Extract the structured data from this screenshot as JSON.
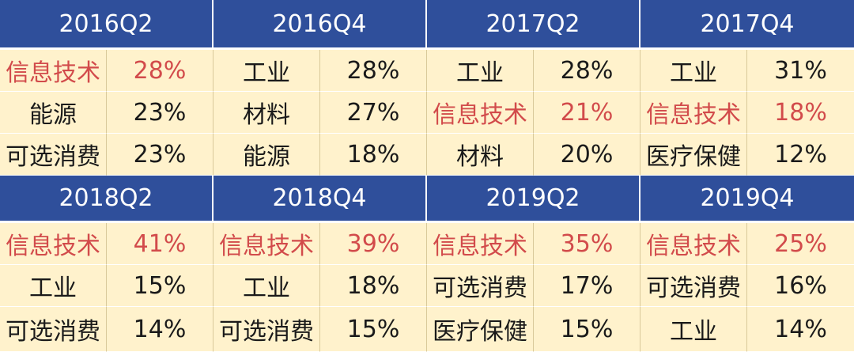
{
  "blocks": [
    {
      "periods": [
        "2016Q2",
        "2016Q4",
        "2017Q2",
        "2017Q4"
      ],
      "rows": [
        [
          {
            "s": "信息技术",
            "v": "28%",
            "hl": true
          },
          {
            "s": "工业",
            "v": "28%",
            "hl": false
          },
          {
            "s": "工业",
            "v": "28%",
            "hl": false
          },
          {
            "s": "工业",
            "v": "31%",
            "hl": false
          }
        ],
        [
          {
            "s": "能源",
            "v": "23%",
            "hl": false
          },
          {
            "s": "材料",
            "v": "27%",
            "hl": false
          },
          {
            "s": "信息技术",
            "v": "21%",
            "hl": true
          },
          {
            "s": "信息技术",
            "v": "18%",
            "hl": true
          }
        ],
        [
          {
            "s": "可选消费",
            "v": "23%",
            "hl": false
          },
          {
            "s": "能源",
            "v": "18%",
            "hl": false
          },
          {
            "s": "材料",
            "v": "20%",
            "hl": false
          },
          {
            "s": "医疗保健",
            "v": "12%",
            "hl": false
          }
        ]
      ]
    },
    {
      "periods": [
        "2018Q2",
        "2018Q4",
        "2019Q2",
        "2019Q4"
      ],
      "rows": [
        [
          {
            "s": "信息技术",
            "v": "41%",
            "hl": true
          },
          {
            "s": "信息技术",
            "v": "39%",
            "hl": true
          },
          {
            "s": "信息技术",
            "v": "35%",
            "hl": true
          },
          {
            "s": "信息技术",
            "v": "25%",
            "hl": true
          }
        ],
        [
          {
            "s": "工业",
            "v": "15%",
            "hl": false
          },
          {
            "s": "工业",
            "v": "18%",
            "hl": false
          },
          {
            "s": "可选消费",
            "v": "17%",
            "hl": false
          },
          {
            "s": "可选消费",
            "v": "16%",
            "hl": false
          }
        ],
        [
          {
            "s": "可选消费",
            "v": "14%",
            "hl": false
          },
          {
            "s": "可选消费",
            "v": "15%",
            "hl": false
          },
          {
            "s": "医疗保健",
            "v": "15%",
            "hl": false
          },
          {
            "s": "工业",
            "v": "14%",
            "hl": false
          }
        ]
      ]
    }
  ],
  "colors": {
    "header_bg": "#2f4f9b",
    "cell_bg": "#fff2cc",
    "highlight_text": "#d24b4b"
  }
}
